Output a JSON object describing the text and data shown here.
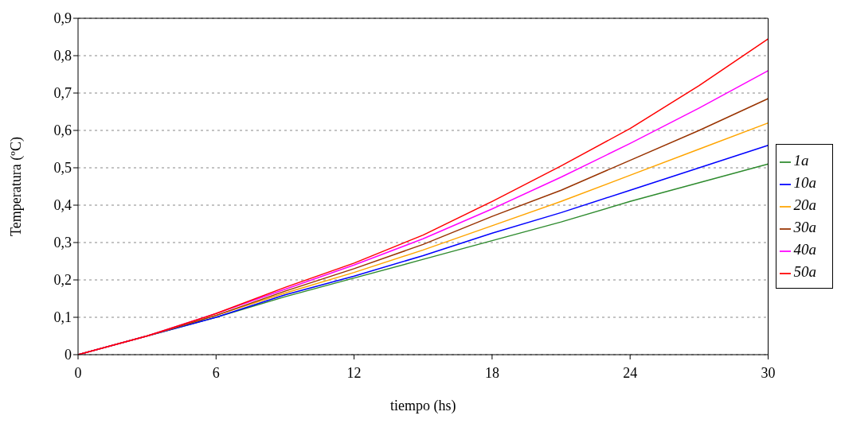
{
  "chart_data": {
    "type": "line",
    "xlabel": "tiempo (hs)",
    "ylabel": "Temperatura (ºC)",
    "x": [
      0,
      3,
      6,
      9,
      12,
      15,
      18,
      21,
      24,
      27,
      30
    ],
    "xlim": [
      0,
      30
    ],
    "xticks": [
      0,
      6,
      12,
      18,
      24,
      30
    ],
    "ylim": [
      0,
      0.9
    ],
    "yticks": [
      {
        "value": 0,
        "label": "0"
      },
      {
        "value": 0.1,
        "label": "0,1"
      },
      {
        "value": 0.2,
        "label": "0,2"
      },
      {
        "value": 0.3,
        "label": "0,3"
      },
      {
        "value": 0.4,
        "label": "0,4"
      },
      {
        "value": 0.5,
        "label": "0,5"
      },
      {
        "value": 0.6,
        "label": "0,6"
      },
      {
        "value": 0.7,
        "label": "0,7"
      },
      {
        "value": 0.8,
        "label": "0,8"
      },
      {
        "value": 0.9,
        "label": "0,9"
      }
    ],
    "grid": "y",
    "legend": "right",
    "marker": "none",
    "line_style": "solid",
    "series": [
      {
        "name": "1a",
        "color": "#2e8b2e",
        "values": [
          0,
          0.05,
          0.1,
          0.155,
          0.205,
          0.255,
          0.305,
          0.355,
          0.41,
          0.46,
          0.51
        ]
      },
      {
        "name": "10a",
        "color": "#0000ff",
        "values": [
          0,
          0.05,
          0.1,
          0.16,
          0.21,
          0.265,
          0.325,
          0.38,
          0.44,
          0.5,
          0.56
        ]
      },
      {
        "name": "20a",
        "color": "#ffa500",
        "values": [
          0,
          0.05,
          0.105,
          0.165,
          0.22,
          0.28,
          0.345,
          0.41,
          0.48,
          0.55,
          0.62
        ]
      },
      {
        "name": "30a",
        "color": "#993300",
        "values": [
          0,
          0.05,
          0.105,
          0.17,
          0.23,
          0.295,
          0.37,
          0.44,
          0.52,
          0.6,
          0.685
        ]
      },
      {
        "name": "40a",
        "color": "#ff00ff",
        "values": [
          0,
          0.05,
          0.11,
          0.175,
          0.24,
          0.31,
          0.39,
          0.475,
          0.565,
          0.66,
          0.76
        ]
      },
      {
        "name": "50a",
        "color": "#ff0000",
        "values": [
          0,
          0.05,
          0.11,
          0.18,
          0.245,
          0.32,
          0.41,
          0.505,
          0.605,
          0.72,
          0.845
        ]
      }
    ]
  }
}
